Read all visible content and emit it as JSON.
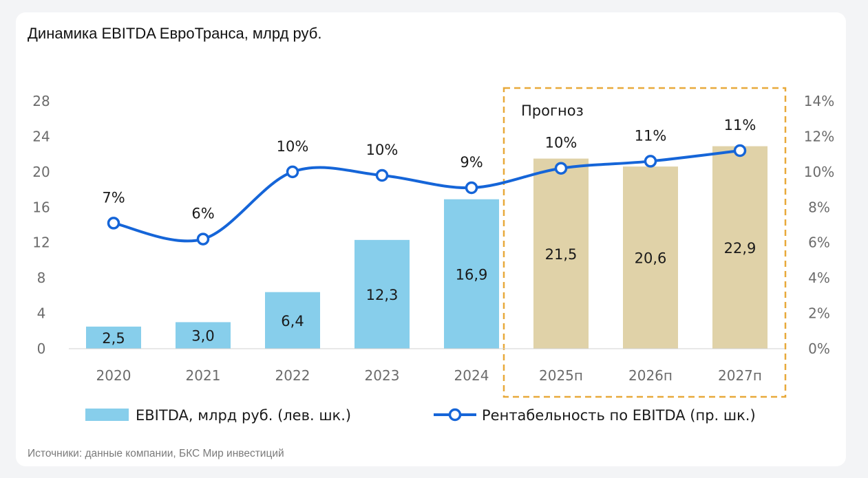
{
  "chart_data": {
    "type": "bar+line",
    "title": "Динамика EBITDA ЕвроТранса, млрд руб.",
    "categories": [
      "2020",
      "2021",
      "2022",
      "2023",
      "2024",
      "2025п",
      "2026п",
      "2027п"
    ],
    "bar_series": {
      "name": "EBITDA, млрд руб. (лев. шк.)",
      "values": [
        2.5,
        3.0,
        6.4,
        12.3,
        16.9,
        21.5,
        20.6,
        22.9
      ],
      "labels": [
        "2,5",
        "3,0",
        "6,4",
        "12,3",
        "16,9",
        "21,5",
        "20,6",
        "22,9"
      ]
    },
    "line_series": {
      "name": "Рентабельность по EBITDA (пр. шк.)",
      "values": [
        7.1,
        6.2,
        10.0,
        9.8,
        9.1,
        10.2,
        10.6,
        11.2
      ],
      "labels": [
        "7%",
        "6%",
        "10%",
        "10%",
        "9%",
        "10%",
        "11%",
        "11%"
      ]
    },
    "forecast_from_index": 5,
    "forecast_label": "Прогноз",
    "y_left": {
      "min": 0,
      "max": 28,
      "ticks": [
        "0",
        "4",
        "8",
        "12",
        "16",
        "20",
        "24",
        "28"
      ]
    },
    "y_right": {
      "min": 0,
      "max": 14,
      "ticks": [
        "0%",
        "2%",
        "4%",
        "6%",
        "8%",
        "10%",
        "12%",
        "14%"
      ]
    },
    "colors": {
      "actual_bar": "#87ceeb",
      "forecast_bar": "#e0d2a8",
      "line": "#1565d8",
      "forecast_box": "#e8a93a"
    }
  },
  "source": "Источники: данные компании, БКС Мир инвестиций"
}
